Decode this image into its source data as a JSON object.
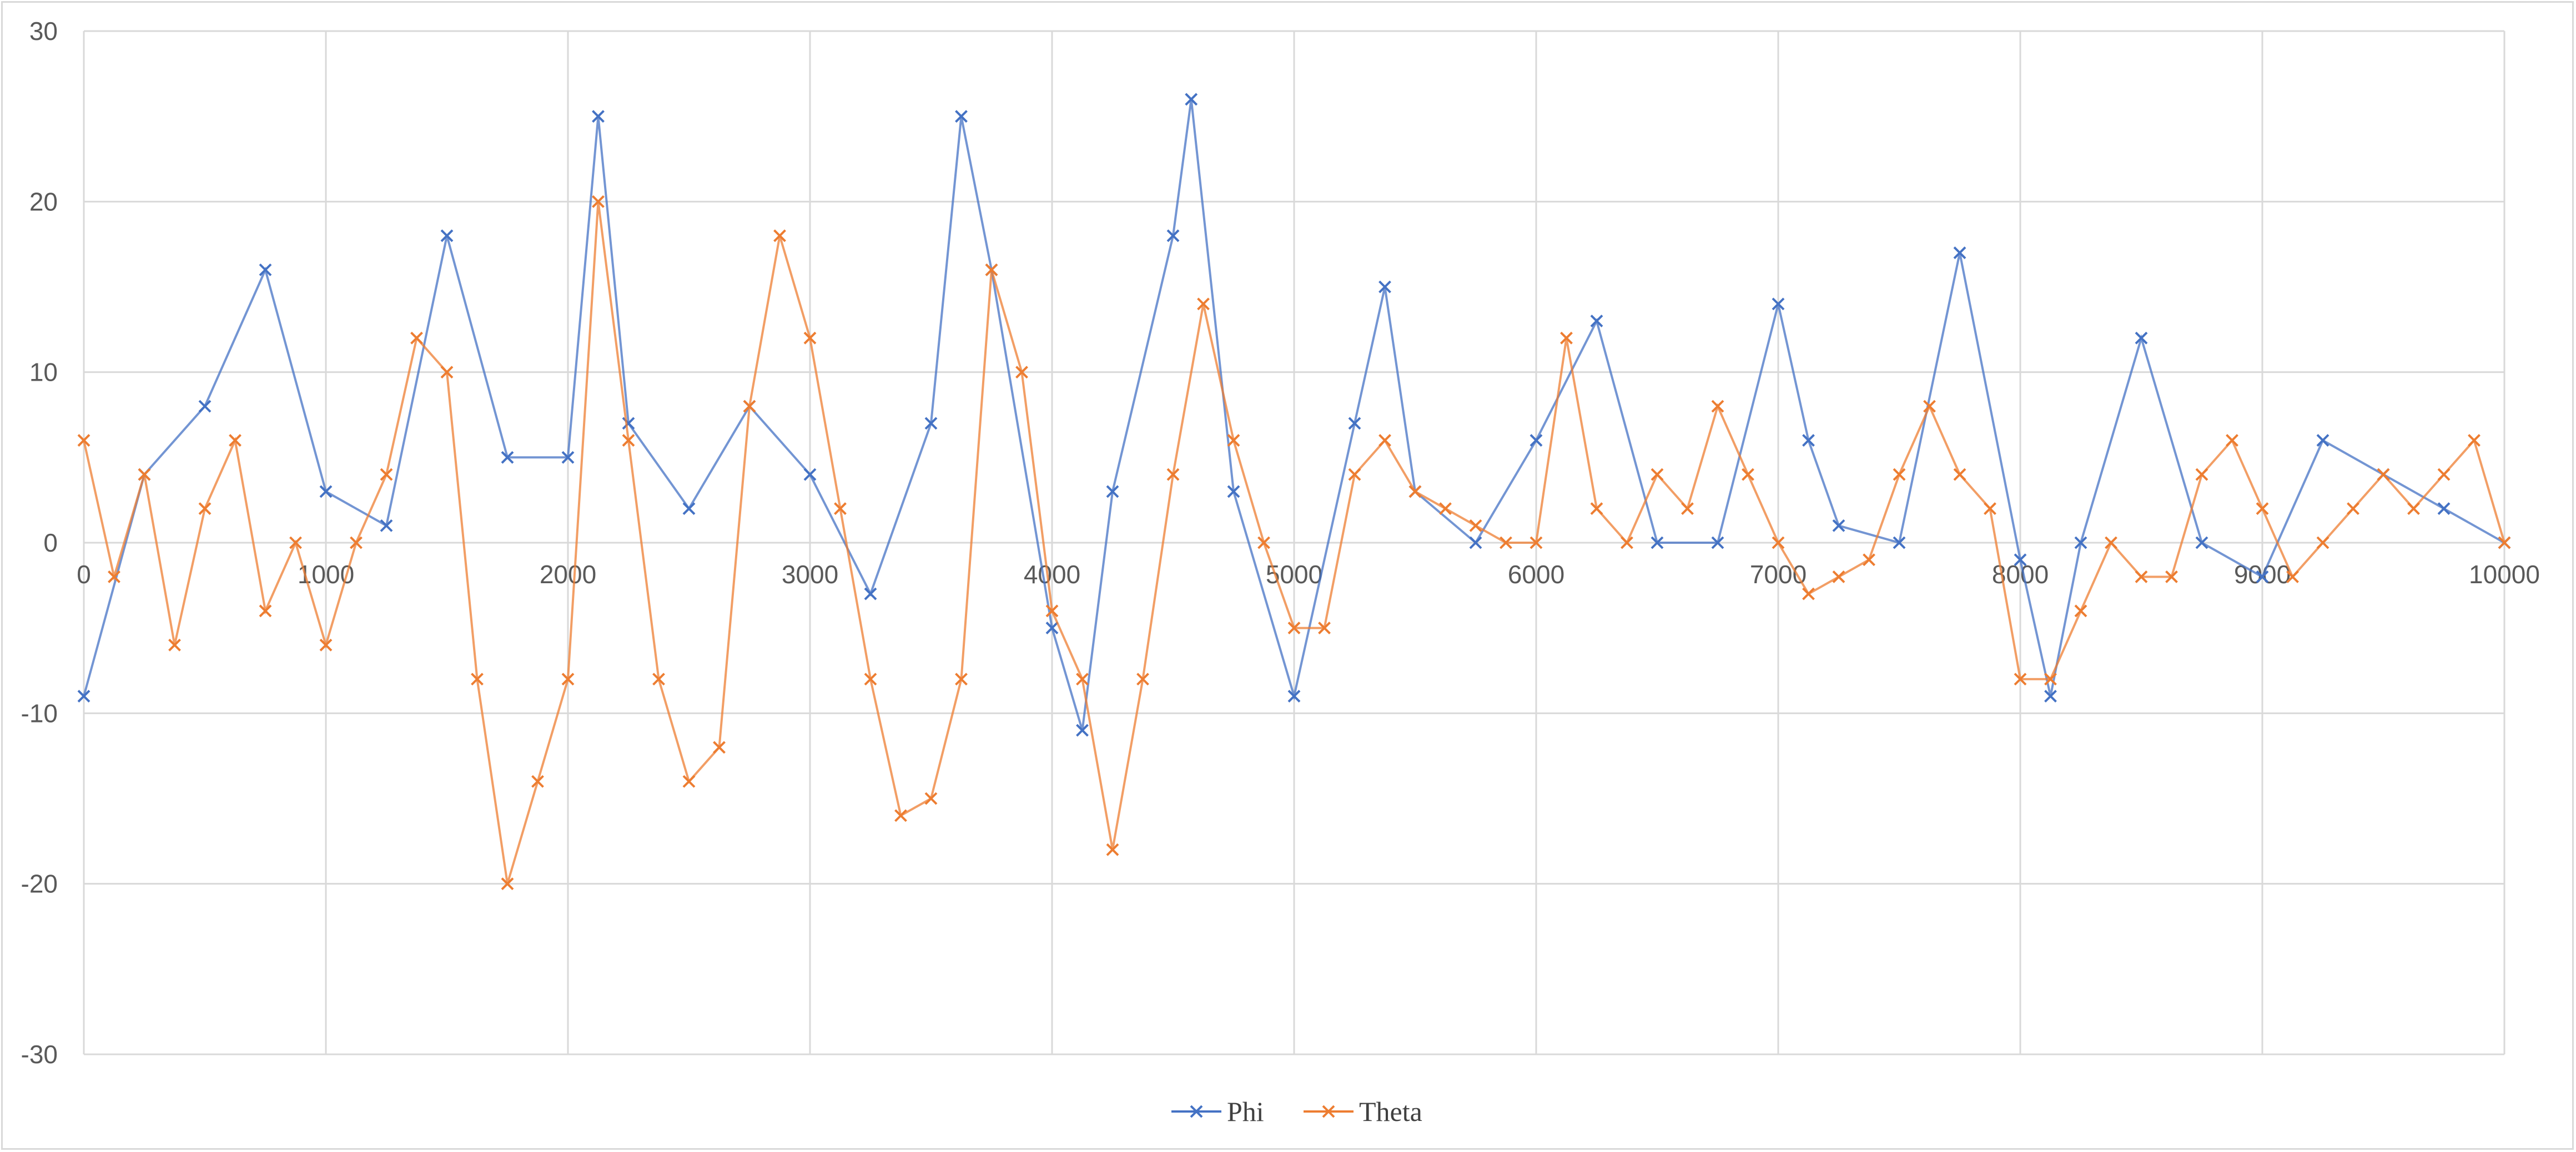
{
  "chart_data": {
    "type": "line",
    "title": "",
    "xlabel": "",
    "ylabel": "",
    "xlim": [
      0,
      10000
    ],
    "ylim": [
      -30,
      30
    ],
    "x_ticks": [
      0,
      1000,
      2000,
      3000,
      4000,
      5000,
      6000,
      7000,
      8000,
      9000,
      10000
    ],
    "y_ticks": [
      30,
      20,
      10,
      0,
      -10,
      -20,
      -30
    ],
    "grid": true,
    "legend_position": "bottom",
    "marker": "x",
    "series": [
      {
        "name": "Phi",
        "color": "#4472c4",
        "x": [
          0,
          250,
          500,
          750,
          1000,
          1250,
          1500,
          1750,
          2000,
          2125,
          2250,
          2500,
          2750,
          3000,
          3250,
          3500,
          3625,
          3750,
          4000,
          4125,
          4250,
          4500,
          4575,
          4750,
          5000,
          5250,
          5375,
          5500,
          5750,
          6000,
          6250,
          6500,
          6750,
          7000,
          7125,
          7250,
          7500,
          7750,
          8000,
          8125,
          8250,
          8500,
          8750,
          9000,
          9250,
          9500,
          9750,
          10000
        ],
        "y": [
          -9,
          4,
          8,
          16,
          3,
          1,
          18,
          5,
          5,
          25,
          7,
          2,
          8,
          4,
          -3,
          7,
          25,
          16,
          -5,
          -11,
          3,
          18,
          26,
          3,
          -9,
          7,
          15,
          3,
          0,
          6,
          13,
          0,
          0,
          14,
          6,
          1,
          0,
          17,
          -1,
          -9,
          0,
          12,
          0,
          -2,
          6,
          4,
          2,
          0
        ]
      },
      {
        "name": "Theta",
        "color": "#ed7d31",
        "x": [
          0,
          125,
          250,
          375,
          500,
          625,
          750,
          875,
          1000,
          1125,
          1250,
          1375,
          1500,
          1625,
          1750,
          1875,
          2000,
          2125,
          2250,
          2375,
          2500,
          2625,
          2750,
          2875,
          3000,
          3125,
          3250,
          3375,
          3500,
          3625,
          3750,
          3875,
          4000,
          4125,
          4250,
          4375,
          4500,
          4625,
          4750,
          4875,
          5000,
          5125,
          5250,
          5375,
          5500,
          5625,
          5750,
          5875,
          6000,
          6125,
          6250,
          6375,
          6500,
          6625,
          6750,
          6875,
          7000,
          7125,
          7250,
          7375,
          7500,
          7625,
          7750,
          7875,
          8000,
          8125,
          8250,
          8375,
          8500,
          8625,
          8750,
          8875,
          9000,
          9125,
          9250,
          9375,
          9500,
          9625,
          9750,
          9875,
          10000
        ],
        "y": [
          6,
          -2,
          4,
          -6,
          2,
          6,
          -4,
          0,
          -6,
          0,
          4,
          12,
          10,
          -8,
          -20,
          -14,
          -8,
          20,
          6,
          -8,
          -14,
          -12,
          8,
          18,
          12,
          2,
          -8,
          -16,
          -15,
          -8,
          16,
          10,
          -4,
          -8,
          -18,
          -8,
          4,
          14,
          6,
          0,
          -5,
          -5,
          4,
          6,
          3,
          2,
          1,
          0,
          0,
          12,
          2,
          0,
          4,
          2,
          8,
          4,
          0,
          -3,
          -2,
          -1,
          4,
          8,
          4,
          2,
          -8,
          -8,
          -4,
          0,
          -2,
          -2,
          4,
          6,
          2,
          -2,
          0,
          2,
          4,
          2,
          4,
          6,
          0
        ]
      }
    ]
  }
}
